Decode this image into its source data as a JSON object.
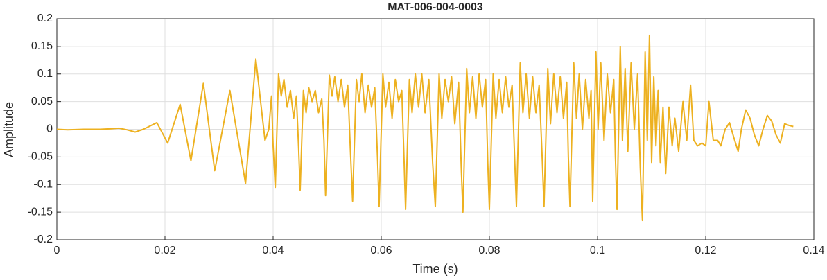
{
  "chart_data": {
    "type": "line",
    "title": "MAT-006-004-0003",
    "xlabel": "Time (s)",
    "ylabel": "Amplitude",
    "color": "#EDB120",
    "grid": true,
    "xlim": [
      0,
      0.14
    ],
    "xticks": [
      0,
      0.02,
      0.04,
      0.06,
      0.08,
      0.1,
      0.12,
      0.14
    ],
    "ylim": [
      -0.2,
      0.2
    ],
    "yticks": [
      -0.2,
      -0.15,
      -0.1,
      -0.05,
      0,
      0.05,
      0.1,
      0.15,
      0.2
    ],
    "x": [
      0,
      0.002,
      0.005,
      0.008,
      0.01,
      0.0115,
      0.013,
      0.0145,
      0.016,
      0.0185,
      0.0205,
      0.0228,
      0.0248,
      0.0271,
      0.0292,
      0.032,
      0.0349,
      0.0368,
      0.0378,
      0.0385,
      0.0392,
      0.0397,
      0.04,
      0.0404,
      0.041,
      0.0415,
      0.042,
      0.0426,
      0.0432,
      0.0438,
      0.0443,
      0.0447,
      0.045,
      0.0456,
      0.0461,
      0.0466,
      0.0472,
      0.0478,
      0.0484,
      0.049,
      0.0494,
      0.0497,
      0.0504,
      0.0509,
      0.0514,
      0.052,
      0.0526,
      0.0532,
      0.0538,
      0.0543,
      0.0547,
      0.0554,
      0.0559,
      0.0564,
      0.057,
      0.0576,
      0.0582,
      0.0588,
      0.0593,
      0.0596,
      0.0603,
      0.0608,
      0.0614,
      0.062,
      0.0626,
      0.0632,
      0.0638,
      0.0642,
      0.0645,
      0.0652,
      0.0657,
      0.0663,
      0.0669,
      0.0675,
      0.0681,
      0.0688,
      0.0695,
      0.07,
      0.0707,
      0.0712,
      0.0718,
      0.0724,
      0.073,
      0.0736,
      0.0743,
      0.0748,
      0.0751,
      0.0758,
      0.0763,
      0.0769,
      0.0775,
      0.0781,
      0.0787,
      0.0793,
      0.0797,
      0.08,
      0.0807,
      0.0812,
      0.0818,
      0.0824,
      0.083,
      0.0836,
      0.0842,
      0.0847,
      0.085,
      0.0857,
      0.0862,
      0.0868,
      0.0874,
      0.088,
      0.0886,
      0.0892,
      0.0898,
      0.0901,
      0.0908,
      0.0913,
      0.0919,
      0.0925,
      0.0931,
      0.0937,
      0.0943,
      0.0946,
      0.0949,
      0.0956,
      0.0961,
      0.0966,
      0.0972,
      0.0978,
      0.0984,
      0.0988,
      0.0991,
      0.0997,
      0.1001,
      0.1006,
      0.1012,
      0.1018,
      0.1024,
      0.103,
      0.1033,
      0.1036,
      0.1042,
      0.1046,
      0.1051,
      0.1056,
      0.1062,
      0.1068,
      0.1074,
      0.1079,
      0.1083,
      0.1088,
      0.1092,
      0.1096,
      0.11,
      0.1104,
      0.1108,
      0.1112,
      0.1116,
      0.1121,
      0.1126,
      0.1132,
      0.1138,
      0.1143,
      0.115,
      0.1158,
      0.1165,
      0.1172,
      0.1178,
      0.1185,
      0.1193,
      0.12,
      0.1206,
      0.1214,
      0.1222,
      0.1228,
      0.1236,
      0.1244,
      0.1252,
      0.126,
      0.1266,
      0.1274,
      0.1282,
      0.129,
      0.1298,
      0.1306,
      0.1314,
      0.1322,
      0.133,
      0.1338,
      0.1346,
      0.1354,
      0.1362
    ],
    "values": [
      0,
      -0.001,
      0,
      0,
      0.001,
      0.002,
      -0.001,
      -0.005,
      0,
      0.012,
      -0.025,
      0.045,
      -0.057,
      0.083,
      -0.075,
      0.07,
      -0.098,
      0.127,
      0.04,
      -0.02,
      0,
      0.06,
      -0.03,
      -0.105,
      0.1,
      0.06,
      0.09,
      0.04,
      0.07,
      0.02,
      0.06,
      -0.03,
      -0.11,
      0.07,
      0.03,
      0.075,
      0.05,
      0.07,
      0.03,
      0.055,
      -0.02,
      -0.12,
      0.098,
      0.06,
      0.095,
      0.05,
      0.09,
      0.04,
      0.08,
      -0.04,
      -0.13,
      0.09,
      0.05,
      0.1,
      0.03,
      0.08,
      0.04,
      0.075,
      -0.05,
      -0.14,
      0.1,
      0.04,
      0.085,
      0.02,
      0.09,
      0.05,
      0.07,
      -0.05,
      -0.145,
      0.09,
      0.03,
      0.1,
      0.04,
      0.1,
      0.03,
      0.09,
      -0.06,
      -0.14,
      0.1,
      0.02,
      0.09,
      0.05,
      0.095,
      0.01,
      0.085,
      -0.07,
      -0.15,
      0.11,
      0.03,
      0.095,
      0.02,
      0.1,
      0.04,
      0.09,
      -0.06,
      -0.145,
      0.1,
      0.02,
      0.09,
      0.03,
      0.095,
      0.04,
      0.08,
      -0.06,
      -0.14,
      0.12,
      0.03,
      0.1,
      0.02,
      0.095,
      0.03,
      0.08,
      -0.06,
      -0.14,
      0.11,
      0.01,
      0.1,
      0.03,
      0.095,
      0.02,
      0.085,
      -0.05,
      -0.14,
      0.12,
      0.02,
      0.1,
      0,
      0.09,
      0.02,
      0.07,
      -0.13,
      0.14,
      0,
      0.12,
      -0.02,
      0.1,
      0.03,
      0.09,
      -0.05,
      -0.145,
      0.15,
      -0.02,
      0.11,
      -0.04,
      0.12,
      0,
      0.1,
      -0.07,
      -0.165,
      0.14,
      -0.02,
      0.17,
      -0.06,
      0.095,
      -0.03,
      0.07,
      -0.06,
      0.04,
      -0.08,
      0.04,
      -0.03,
      0.02,
      -0.04,
      0.05,
      -0.02,
      0.08,
      -0.02,
      -0.03,
      -0.025,
      -0.03,
      0.05,
      -0.02,
      -0.02,
      -0.03,
      0,
      0.012,
      -0.015,
      -0.04,
      0,
      0.035,
      0.02,
      -0.01,
      -0.03,
      0,
      0.025,
      0.015,
      -0.01,
      -0.025,
      0.01,
      0.007,
      0.005
    ]
  }
}
